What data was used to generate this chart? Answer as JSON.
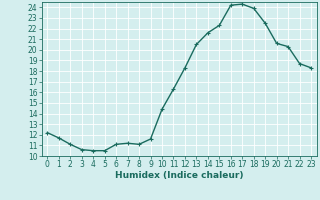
{
  "x": [
    0,
    1,
    2,
    3,
    4,
    5,
    6,
    7,
    8,
    9,
    10,
    11,
    12,
    13,
    14,
    15,
    16,
    17,
    18,
    19,
    20,
    21,
    22,
    23
  ],
  "y": [
    12.2,
    11.7,
    11.1,
    10.6,
    10.5,
    10.5,
    11.1,
    11.2,
    11.1,
    11.6,
    14.4,
    16.3,
    18.3,
    20.5,
    21.6,
    22.3,
    24.2,
    24.3,
    23.9,
    22.5,
    20.6,
    20.3,
    18.7,
    18.3
  ],
  "line_color": "#1a6b5e",
  "marker": "+",
  "marker_size": 3,
  "bg_color": "#d4eeee",
  "grid_color": "#ffffff",
  "xlabel": "Humidex (Indice chaleur)",
  "ylim": [
    10,
    24.5
  ],
  "xlim": [
    -0.5,
    23.5
  ],
  "yticks": [
    10,
    11,
    12,
    13,
    14,
    15,
    16,
    17,
    18,
    19,
    20,
    21,
    22,
    23,
    24
  ],
  "xticks": [
    0,
    1,
    2,
    3,
    4,
    5,
    6,
    7,
    8,
    9,
    10,
    11,
    12,
    13,
    14,
    15,
    16,
    17,
    18,
    19,
    20,
    21,
    22,
    23
  ],
  "tick_fontsize": 5.5,
  "label_fontsize": 6.5,
  "line_width": 1.0
}
